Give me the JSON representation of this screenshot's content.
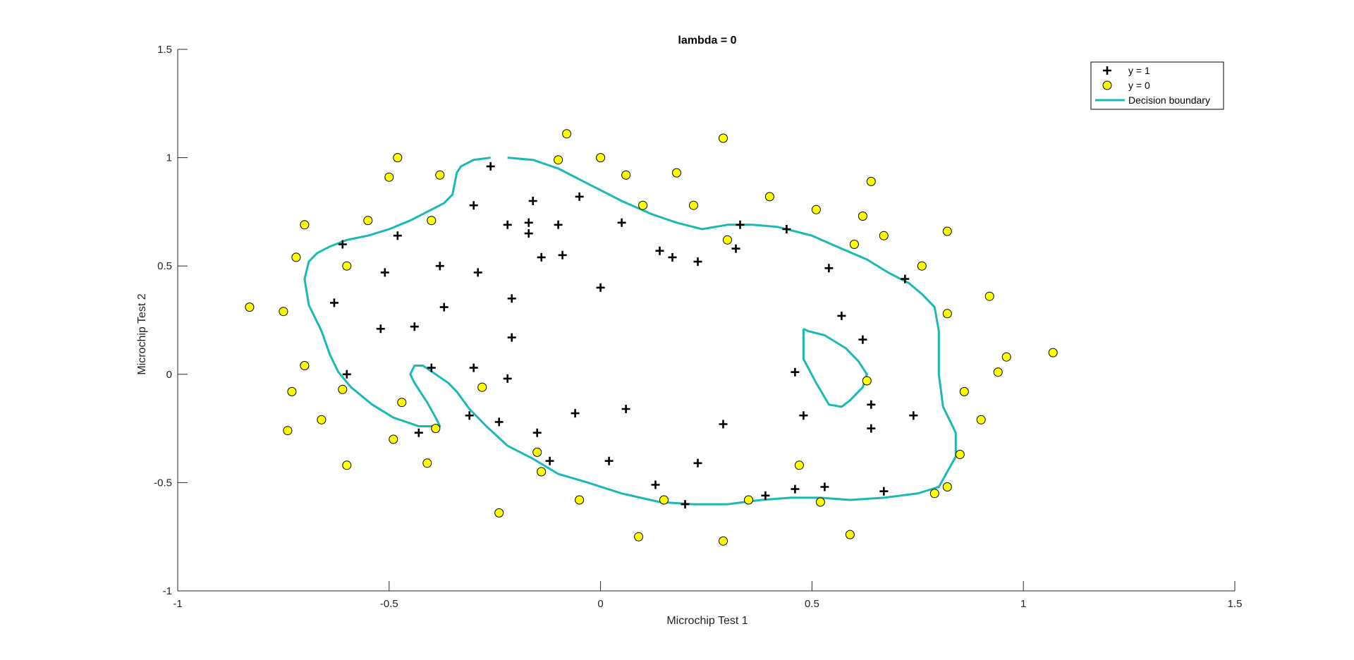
{
  "chart_data": {
    "type": "scatter",
    "title": "lambda = 0",
    "xlabel": "Microchip Test 1",
    "ylabel": "Microchip Test 2",
    "xlim": [
      -1,
      1.5
    ],
    "ylim": [
      -1,
      1.5
    ],
    "xticks": [
      -1,
      -0.5,
      0,
      0.5,
      1,
      1.5
    ],
    "xtick_labels": [
      "-1",
      "-0.5",
      "0",
      "0.5",
      "1",
      "1.5"
    ],
    "yticks": [
      -1,
      -0.5,
      0,
      0.5,
      1,
      1.5
    ],
    "ytick_labels": [
      "-1",
      "-0.5",
      "0",
      "0.5",
      "1",
      "1.5"
    ],
    "grid": false,
    "legend_position": "top-right",
    "colors": {
      "positive": "#000000",
      "negative_fill": "#ffff00",
      "negative_edge": "#000000",
      "boundary": "#1ab9b4"
    },
    "series": [
      {
        "name": "y = 1",
        "marker": "plus",
        "x": [
          -0.26,
          -0.16,
          -0.3,
          -0.22,
          -0.17,
          -0.17,
          -0.1,
          -0.05,
          0.05,
          -0.14,
          -0.09,
          -0.61,
          -0.48,
          -0.51,
          -0.38,
          -0.29,
          -0.63,
          -0.37,
          -0.21,
          -0.52,
          -0.44,
          -0.21,
          -0.6,
          -0.4,
          -0.3,
          -0.22,
          -0.31,
          -0.24,
          -0.43,
          -0.15,
          -0.12,
          -0.06,
          0.06,
          0.02,
          0.14,
          0.17,
          0.23,
          0.33,
          0.32,
          0.44,
          0.54,
          0.72,
          0.57,
          0.62,
          0.46,
          0.48,
          0.64,
          0.64,
          0.74,
          0.67,
          0.53,
          0.46,
          0.39,
          0.2,
          0.13,
          0.23,
          0.29,
          -0.0
        ],
        "y": [
          0.96,
          0.8,
          0.78,
          0.69,
          0.7,
          0.65,
          0.69,
          0.82,
          0.7,
          0.54,
          0.55,
          0.6,
          0.64,
          0.47,
          0.5,
          0.47,
          0.33,
          0.31,
          0.35,
          0.21,
          0.22,
          0.17,
          0.0,
          0.03,
          0.03,
          -0.02,
          -0.19,
          -0.22,
          -0.27,
          -0.27,
          -0.4,
          -0.18,
          -0.16,
          -0.4,
          0.57,
          0.54,
          0.52,
          0.69,
          0.58,
          0.67,
          0.49,
          0.44,
          0.27,
          0.16,
          0.01,
          -0.19,
          -0.14,
          -0.25,
          -0.19,
          -0.54,
          -0.52,
          -0.53,
          -0.56,
          -0.6,
          -0.51,
          -0.41,
          -0.23,
          0.4
        ]
      },
      {
        "name": "y = 0",
        "marker": "circle",
        "x": [
          -0.83,
          -0.75,
          -0.72,
          -0.7,
          -0.7,
          -0.73,
          -0.74,
          -0.66,
          -0.6,
          -0.61,
          -0.6,
          -0.55,
          -0.5,
          -0.48,
          -0.38,
          -0.4,
          -0.47,
          -0.49,
          -0.41,
          -0.39,
          -0.28,
          -0.24,
          -0.15,
          -0.14,
          -0.1,
          -0.08,
          -0.0,
          0.06,
          0.1,
          0.18,
          0.22,
          0.29,
          0.3,
          0.4,
          0.51,
          0.62,
          0.64,
          0.6,
          0.67,
          0.76,
          0.82,
          0.82,
          0.92,
          0.96,
          1.07,
          0.94,
          0.86,
          0.9,
          0.85,
          0.82,
          0.79,
          0.63,
          0.59,
          0.52,
          0.47,
          0.35,
          0.15,
          0.09,
          0.29,
          -0.05
        ],
        "y": [
          0.31,
          0.29,
          0.54,
          0.69,
          0.04,
          -0.08,
          -0.26,
          -0.21,
          0.5,
          -0.07,
          -0.42,
          0.71,
          0.91,
          1.0,
          0.92,
          0.71,
          -0.13,
          -0.3,
          -0.41,
          -0.25,
          -0.06,
          -0.64,
          -0.36,
          -0.45,
          0.99,
          1.11,
          1.0,
          0.92,
          0.78,
          0.93,
          0.78,
          1.09,
          0.62,
          0.82,
          0.76,
          0.73,
          0.89,
          0.6,
          0.64,
          0.5,
          0.66,
          0.28,
          0.36,
          0.08,
          0.1,
          0.01,
          -0.08,
          -0.21,
          -0.37,
          -0.52,
          -0.55,
          -0.03,
          -0.74,
          -0.59,
          -0.42,
          -0.58,
          -0.58,
          -0.75,
          -0.77,
          -0.58
        ]
      },
      {
        "name": "Decision boundary",
        "marker": "line",
        "paths": [
          {
            "x": [
              -0.22,
              -0.16,
              -0.1,
              -0.04,
              0.0,
              0.05,
              0.12,
              0.18,
              0.24,
              0.3,
              0.36,
              0.42,
              0.5,
              0.57,
              0.63,
              0.68,
              0.73,
              0.76,
              0.79,
              0.8,
              0.8,
              0.81,
              0.84,
              0.84,
              0.82,
              0.8,
              0.75,
              0.67,
              0.59,
              0.52,
              0.45,
              0.38,
              0.3,
              0.22,
              0.14,
              0.05,
              -0.03,
              -0.1,
              -0.16,
              -0.22,
              -0.27,
              -0.31,
              -0.34,
              -0.36,
              -0.39,
              -0.42,
              -0.44,
              -0.45,
              -0.44,
              -0.41,
              -0.39,
              -0.38,
              -0.43,
              -0.49,
              -0.54,
              -0.59,
              -0.62,
              -0.64,
              -0.66,
              -0.69,
              -0.7,
              -0.69,
              -0.67,
              -0.64,
              -0.6,
              -0.55,
              -0.5,
              -0.45,
              -0.4,
              -0.37,
              -0.35,
              -0.34,
              -0.33,
              -0.3,
              -0.26
            ],
            "y": [
              1.0,
              0.99,
              0.95,
              0.89,
              0.85,
              0.8,
              0.74,
              0.7,
              0.67,
              0.69,
              0.69,
              0.68,
              0.64,
              0.58,
              0.53,
              0.47,
              0.42,
              0.37,
              0.31,
              0.2,
              -0.0,
              -0.15,
              -0.27,
              -0.38,
              -0.45,
              -0.52,
              -0.55,
              -0.57,
              -0.58,
              -0.57,
              -0.57,
              -0.58,
              -0.6,
              -0.6,
              -0.59,
              -0.55,
              -0.5,
              -0.46,
              -0.39,
              -0.33,
              -0.24,
              -0.16,
              -0.08,
              -0.04,
              -0.0,
              0.04,
              0.04,
              0.0,
              -0.04,
              -0.13,
              -0.2,
              -0.24,
              -0.24,
              -0.2,
              -0.14,
              -0.06,
              0.01,
              0.09,
              0.2,
              0.32,
              0.44,
              0.52,
              0.56,
              0.59,
              0.62,
              0.64,
              0.67,
              0.71,
              0.76,
              0.79,
              0.83,
              0.93,
              0.96,
              0.99,
              1.0
            ]
          },
          {
            "x": [
              0.48,
              0.49,
              0.53,
              0.58,
              0.61,
              0.63,
              0.62,
              0.59,
              0.57,
              0.54,
              0.51,
              0.48,
              0.48
            ],
            "y": [
              0.21,
              0.2,
              0.18,
              0.12,
              0.06,
              -0.0,
              -0.06,
              -0.12,
              -0.15,
              -0.14,
              -0.04,
              0.07,
              0.21
            ]
          }
        ]
      }
    ]
  }
}
